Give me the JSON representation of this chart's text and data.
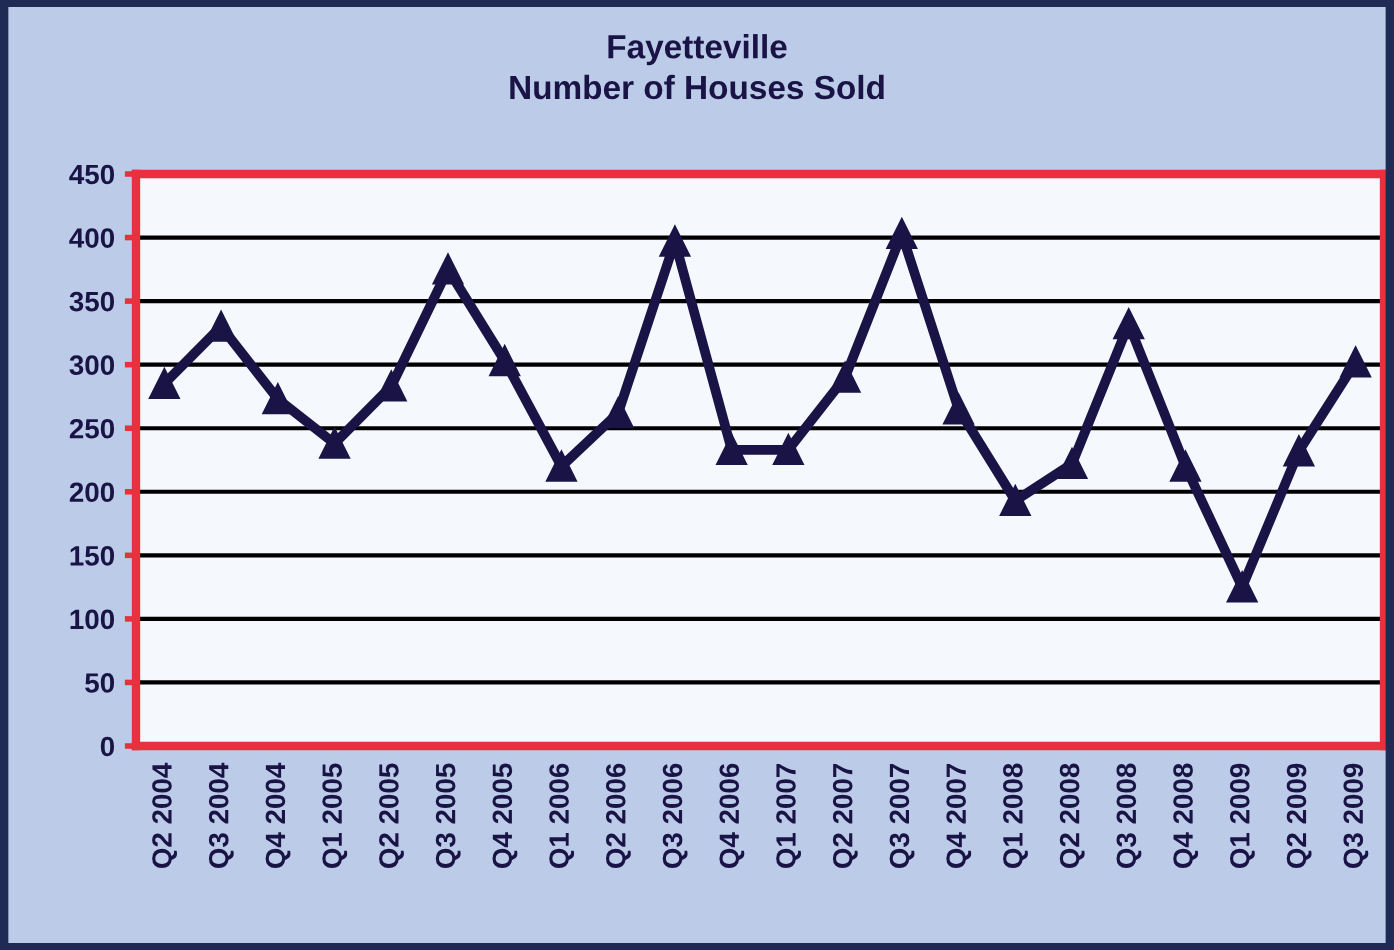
{
  "chart_data": {
    "type": "line",
    "title": "Fayetteville\nNumber of Houses Sold",
    "categories": [
      "Q2 2004",
      "Q3 2004",
      "Q4 2004",
      "Q1 2005",
      "Q2 2005",
      "Q3 2005",
      "Q4 2005",
      "Q1 2006",
      "Q2 2006",
      "Q3 2006",
      "Q4 2006",
      "Q1 2007",
      "Q2 2007",
      "Q3 2007",
      "Q4 2007",
      "Q1 2008",
      "Q2 2008",
      "Q3 2008",
      "Q4 2008",
      "Q1 2009",
      "Q2 2009",
      "Q3 2009"
    ],
    "series": [
      {
        "color": "#1a1446",
        "values": [
          285,
          330,
          273,
          238,
          283,
          375,
          303,
          220,
          262,
          397,
          233,
          233,
          290,
          403,
          265,
          193,
          222,
          332,
          220,
          125,
          232,
          302
        ]
      }
    ],
    "ylim": [
      0,
      450
    ],
    "yticks": [
      0,
      50,
      100,
      150,
      200,
      250,
      300,
      350,
      400,
      450
    ],
    "grid": "y",
    "legend": false,
    "marker": "triangle",
    "line_style": "solid"
  }
}
